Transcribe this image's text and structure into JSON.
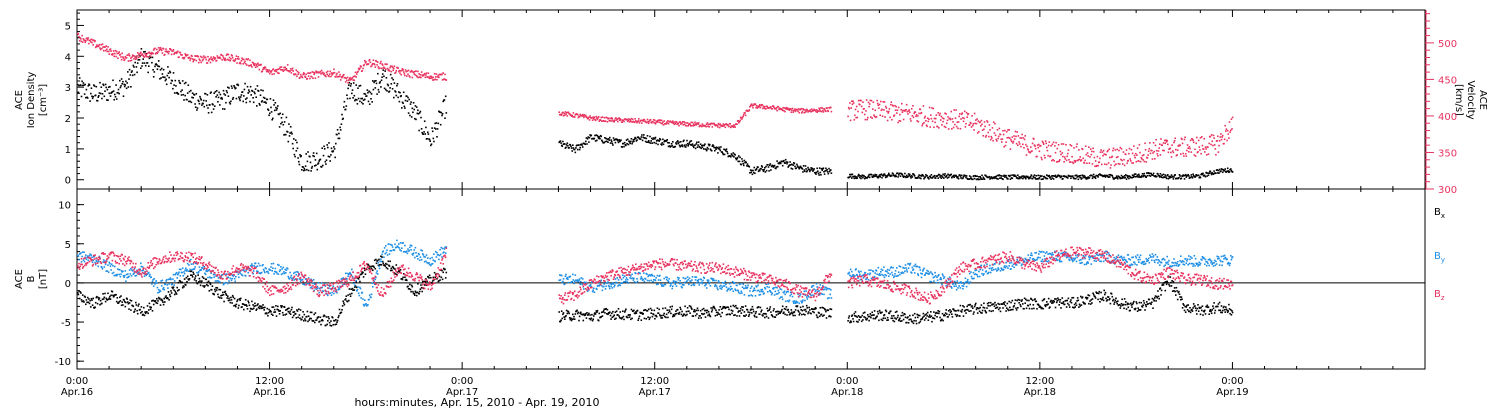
{
  "figure": {
    "xlabel": "hours:minutes, Apr. 15, 2010 - Apr. 19, 2010",
    "x_range_hours": [
      0,
      84
    ],
    "x_ticks": [
      {
        "h": 0,
        "time": "0:00",
        "date": "Apr.16"
      },
      {
        "h": 12,
        "time": "12:00",
        "date": "Apr.16"
      },
      {
        "h": 24,
        "time": "0:00",
        "date": "Apr.17"
      },
      {
        "h": 36,
        "time": "12:00",
        "date": "Apr.17"
      },
      {
        "h": 48,
        "time": "0:00",
        "date": "Apr.18"
      },
      {
        "h": 60,
        "time": "12:00",
        "date": "Apr.18"
      },
      {
        "h": 72,
        "time": "0:00",
        "date": "Apr.19"
      }
    ],
    "minor_tick_hours": 2
  },
  "chart_data": [
    {
      "type": "scatter",
      "panel": "top",
      "left_axis": {
        "label_lines": [
          "ACE",
          "Ion Density",
          "[cm⁻³]"
        ],
        "ylim": [
          -0.3,
          5.5
        ],
        "ticks": [
          0,
          1,
          2,
          3,
          4,
          5
        ],
        "color": "#000000"
      },
      "right_axis": {
        "label_lines": [
          "ACE",
          "Velocity",
          "[km/s]"
        ],
        "ylim": [
          300,
          545
        ],
        "ticks": [
          300,
          350,
          400,
          450,
          500
        ],
        "minor_step": 10,
        "color": "#e8335f"
      },
      "series": [
        {
          "axis": "left",
          "color": "#000000",
          "x_unit": "hours since Apr.16 0:00",
          "segments": [
            {
              "x": [
                0,
                1,
                2,
                3,
                4,
                5,
                6,
                7,
                8,
                9,
                10,
                11,
                12,
                13,
                14,
                15,
                16,
                17,
                18,
                19,
                20,
                21,
                22,
                23
              ],
              "y": [
                3.0,
                2.8,
                2.9,
                3.1,
                4.0,
                3.6,
                3.2,
                2.7,
                2.5,
                2.6,
                2.9,
                2.8,
                2.4,
                1.7,
                0.6,
                0.7,
                1.0,
                3.0,
                2.6,
                3.4,
                2.8,
                2.2,
                1.3,
                2.5
              ],
              "spread": 0.35
            },
            {
              "x": [
                30,
                31,
                32,
                33,
                34,
                35,
                36,
                37,
                38,
                39,
                40,
                41,
                42,
                43,
                44,
                45,
                46,
                47
              ],
              "y": [
                1.2,
                1.0,
                1.4,
                1.3,
                1.2,
                1.4,
                1.3,
                1.2,
                1.2,
                1.1,
                1.0,
                0.8,
                0.3,
                0.4,
                0.6,
                0.4,
                0.3,
                0.3
              ],
              "spread": 0.12
            },
            {
              "x": [
                48,
                49,
                50,
                51,
                52,
                53,
                54,
                55,
                56,
                57,
                58,
                59,
                60,
                61,
                62,
                63,
                64,
                65,
                66,
                67,
                68,
                69,
                70,
                71,
                72
              ],
              "y": [
                0.15,
                0.12,
                0.15,
                0.18,
                0.15,
                0.12,
                0.15,
                0.12,
                0.1,
                0.12,
                0.1,
                0.12,
                0.1,
                0.12,
                0.1,
                0.12,
                0.15,
                0.1,
                0.15,
                0.2,
                0.12,
                0.12,
                0.15,
                0.3,
                0.35
              ],
              "spread": 0.07
            }
          ]
        },
        {
          "axis": "right",
          "color": "#e8335f",
          "x_unit": "hours since Apr.16 0:00",
          "segments": [
            {
              "x": [
                0,
                1,
                2,
                3,
                4,
                5,
                6,
                7,
                8,
                9,
                10,
                11,
                12,
                13,
                14,
                15,
                16,
                17,
                18,
                19,
                20,
                21,
                22,
                23
              ],
              "y": [
                510,
                500,
                490,
                480,
                485,
                490,
                488,
                480,
                478,
                482,
                478,
                472,
                460,
                468,
                455,
                458,
                460,
                448,
                475,
                470,
                462,
                458,
                455,
                455
              ],
              "spread": 5
            },
            {
              "x": [
                30,
                31,
                32,
                33,
                34,
                35,
                36,
                37,
                38,
                39,
                40,
                41,
                42,
                43,
                44,
                45,
                46,
                47
              ],
              "y": [
                405,
                402,
                398,
                396,
                395,
                394,
                393,
                391,
                390,
                389,
                388,
                388,
                415,
                413,
                410,
                408,
                409,
                410
              ],
              "spread": 3
            },
            {
              "x": [
                48,
                49,
                50,
                51,
                52,
                53,
                54,
                55,
                56,
                57,
                58,
                59,
                60,
                61,
                62,
                63,
                64,
                65,
                66,
                67,
                68,
                69,
                70,
                71,
                72
              ],
              "y": [
                408,
                410,
                408,
                405,
                404,
                400,
                398,
                395,
                390,
                380,
                370,
                362,
                355,
                352,
                350,
                345,
                342,
                345,
                348,
                355,
                358,
                358,
                360,
                362,
                390
              ],
              "spread": 14
            }
          ]
        }
      ]
    },
    {
      "type": "scatter",
      "panel": "bottom",
      "left_axis": {
        "label_lines": [
          "ACE",
          "B",
          "[nT]"
        ],
        "ylim": [
          -11,
          12
        ],
        "ticks": [
          -10,
          -5,
          0,
          5,
          10
        ]
      },
      "zero_line": true,
      "legend": [
        {
          "key": "Bx",
          "text": "B",
          "sub": "x",
          "color": "#000000"
        },
        {
          "key": "By",
          "text": "B",
          "sub": "y",
          "color": "#1e8fe6"
        },
        {
          "key": "Bz",
          "text": "B",
          "sub": "z",
          "color": "#e8335f"
        }
      ],
      "series": [
        {
          "name": "Bx",
          "color": "#000000",
          "spread": 0.7,
          "segments": [
            {
              "x": [
                0,
                1,
                2,
                3,
                4,
                5,
                6,
                7,
                8,
                9,
                10,
                11,
                12,
                13,
                14,
                15,
                16,
                17,
                18,
                19,
                20,
                21,
                22,
                23
              ],
              "y": [
                -1.5,
                -2.5,
                -1.5,
                -2.5,
                -3.5,
                -2.5,
                -1.0,
                1.0,
                0.0,
                -1.5,
                -2.5,
                -3.0,
                -3.5,
                -3.5,
                -4.0,
                -4.5,
                -5.0,
                -1.0,
                2.0,
                3.0,
                1.5,
                -1.0,
                0.5,
                1.5
              ]
            },
            {
              "x": [
                30,
                31,
                32,
                33,
                34,
                35,
                36,
                37,
                38,
                39,
                40,
                41,
                42,
                43,
                44,
                45,
                46,
                47
              ],
              "y": [
                -4.2,
                -4.0,
                -4.2,
                -3.8,
                -3.9,
                -4.0,
                -3.8,
                -3.6,
                -3.5,
                -3.8,
                -3.5,
                -3.4,
                -3.6,
                -3.7,
                -3.5,
                -3.3,
                -3.6,
                -3.8
              ]
            },
            {
              "x": [
                48,
                49,
                50,
                51,
                52,
                53,
                54,
                55,
                56,
                57,
                58,
                59,
                60,
                61,
                62,
                63,
                64,
                65,
                66,
                67,
                68,
                69,
                70,
                71,
                72
              ],
              "y": [
                -4.3,
                -4.2,
                -4.0,
                -4.2,
                -4.5,
                -4.3,
                -4.0,
                -3.5,
                -3.2,
                -3.0,
                -2.8,
                -2.5,
                -2.6,
                -2.4,
                -2.5,
                -2.0,
                -1.5,
                -2.5,
                -3.0,
                -2.5,
                0.5,
                -3.0,
                -3.4,
                -3.0,
                -3.5
              ]
            }
          ]
        },
        {
          "name": "By",
          "color": "#1e8fe6",
          "spread": 0.7,
          "segments": [
            {
              "x": [
                0,
                1,
                2,
                3,
                4,
                5,
                6,
                7,
                8,
                9,
                10,
                11,
                12,
                13,
                14,
                15,
                16,
                17,
                18,
                19,
                20,
                21,
                22,
                23
              ],
              "y": [
                3.5,
                3.2,
                2.0,
                1.0,
                2.0,
                -0.5,
                0.5,
                2.5,
                1.5,
                0.5,
                1.0,
                2.0,
                2.0,
                1.5,
                0.5,
                -0.5,
                -1.0,
                1.5,
                -3.0,
                4.0,
                5.0,
                4.0,
                3.0,
                4.5
              ]
            },
            {
              "x": [
                30,
                31,
                32,
                33,
                34,
                35,
                36,
                37,
                38,
                39,
                40,
                41,
                42,
                43,
                44,
                45,
                46,
                47
              ],
              "y": [
                0.5,
                0.5,
                -0.5,
                0.0,
                0.5,
                0.8,
                0.5,
                0.0,
                0.3,
                0.2,
                -0.2,
                -0.5,
                -1.0,
                -0.5,
                -1.5,
                -2.0,
                -0.5,
                -1.5
              ]
            },
            {
              "x": [
                48,
                49,
                50,
                51,
                52,
                53,
                54,
                55,
                56,
                57,
                58,
                59,
                60,
                61,
                62,
                63,
                64,
                65,
                66,
                67,
                68,
                69,
                70,
                71,
                72
              ],
              "y": [
                1.5,
                1.0,
                1.5,
                1.5,
                2.0,
                1.0,
                0.5,
                -0.5,
                1.5,
                2.0,
                2.5,
                3.0,
                3.5,
                3.5,
                3.2,
                3.0,
                3.5,
                3.0,
                3.0,
                3.2,
                2.8,
                3.0,
                2.8,
                3.0,
                3.0
              ]
            }
          ]
        },
        {
          "name": "Bz",
          "color": "#e8335f",
          "spread": 0.7,
          "segments": [
            {
              "x": [
                0,
                1,
                2,
                3,
                4,
                5,
                6,
                7,
                8,
                9,
                10,
                11,
                12,
                13,
                14,
                15,
                16,
                17,
                18,
                19,
                20,
                21,
                22,
                23
              ],
              "y": [
                2.5,
                3.0,
                3.5,
                3.0,
                1.5,
                3.0,
                3.5,
                3.5,
                2.5,
                1.0,
                2.0,
                1.5,
                -1.0,
                -0.5,
                1.0,
                -1.0,
                -0.5,
                0.5,
                2.5,
                -1.5,
                2.0,
                1.0,
                -0.5,
                4.0
              ]
            },
            {
              "x": [
                30,
                31,
                32,
                33,
                34,
                35,
                36,
                37,
                38,
                39,
                40,
                41,
                42,
                43,
                44,
                45,
                46,
                47
              ],
              "y": [
                -2.0,
                -1.5,
                0.0,
                1.0,
                1.5,
                2.0,
                2.5,
                2.5,
                2.2,
                2.0,
                2.0,
                1.5,
                1.0,
                0.5,
                0.0,
                -1.0,
                -1.5,
                1.5
              ]
            },
            {
              "x": [
                48,
                49,
                50,
                51,
                52,
                53,
                54,
                55,
                56,
                57,
                58,
                59,
                60,
                61,
                62,
                63,
                64,
                65,
                66,
                67,
                68,
                69,
                70,
                71,
                72
              ],
              "y": [
                0.0,
                0.5,
                0.0,
                -0.5,
                -1.0,
                -2.0,
                -0.5,
                2.0,
                2.5,
                3.0,
                3.5,
                2.5,
                2.0,
                3.5,
                4.0,
                4.0,
                3.5,
                2.5,
                1.0,
                0.5,
                1.5,
                0.5,
                0.5,
                0.0,
                0.0
              ]
            }
          ]
        }
      ]
    }
  ]
}
